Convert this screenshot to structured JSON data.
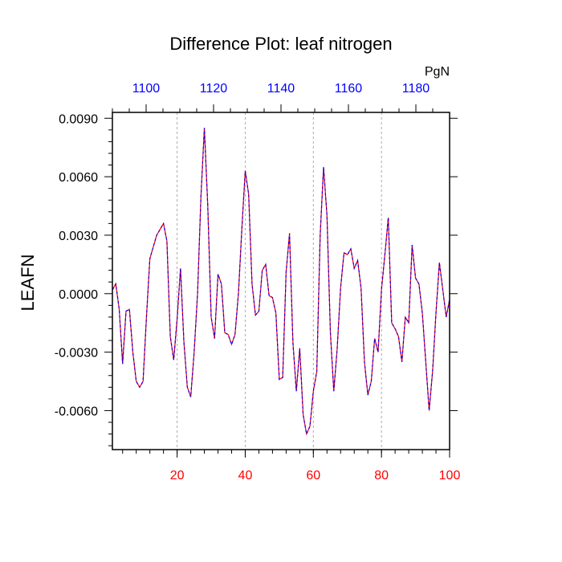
{
  "chart_data": {
    "type": "line",
    "title": "Difference Plot: leaf nitrogen",
    "ylabel": "LEAFN",
    "top_axis_unit": "PgN",
    "xlim": [
      1,
      100
    ],
    "ylim": [
      -0.008,
      0.0093
    ],
    "bottom_ticks": [
      {
        "value": 20,
        "label": "20"
      },
      {
        "value": 40,
        "label": "40"
      },
      {
        "value": 60,
        "label": "60"
      },
      {
        "value": 80,
        "label": "80"
      },
      {
        "value": 100,
        "label": "100"
      }
    ],
    "top_ticks": [
      {
        "value": 10.9,
        "label": "1100"
      },
      {
        "value": 30.7,
        "label": "1120"
      },
      {
        "value": 50.5,
        "label": "1140"
      },
      {
        "value": 70.3,
        "label": "1160"
      },
      {
        "value": 90.1,
        "label": "1180"
      }
    ],
    "y_ticks": [
      {
        "value": 0.009,
        "label": "0.0090"
      },
      {
        "value": 0.006,
        "label": "0.0060"
      },
      {
        "value": 0.003,
        "label": "0.0030"
      },
      {
        "value": 0.0,
        "label": "0.0000"
      },
      {
        "value": -0.003,
        "label": "-0.0030"
      },
      {
        "value": -0.006,
        "label": "-0.0060"
      }
    ],
    "y_minor_step": 0.0006,
    "x_minor_step": 4,
    "grid_lines_x": [
      20,
      40,
      60,
      80
    ],
    "colors": {
      "series_a": "#ff0000",
      "series_b": "#0000ff",
      "bottom_axis": "#ff0000",
      "top_axis": "#0000ff",
      "grid": "#aaaaaa",
      "frame": "#000000"
    },
    "series": [
      {
        "name": "difference",
        "x": [
          1,
          2,
          3,
          4,
          5,
          6,
          7,
          8,
          9,
          10,
          11,
          12,
          13,
          14,
          15,
          16,
          17,
          18,
          19,
          20,
          21,
          22,
          23,
          24,
          25,
          26,
          27,
          28,
          29,
          30,
          31,
          32,
          33,
          34,
          35,
          36,
          37,
          38,
          39,
          40,
          41,
          42,
          43,
          44,
          45,
          46,
          47,
          48,
          49,
          50,
          51,
          52,
          53,
          54,
          55,
          56,
          57,
          58,
          59,
          60,
          61,
          62,
          63,
          64,
          65,
          66,
          67,
          68,
          69,
          70,
          71,
          72,
          73,
          74,
          75,
          76,
          77,
          78,
          79,
          80,
          81,
          82,
          83,
          84,
          85,
          86,
          87,
          88,
          89,
          90,
          91,
          92,
          93,
          94,
          95,
          96,
          97,
          98,
          99,
          100
        ],
        "values": [
          0.0002,
          0.0005,
          -0.0008,
          -0.0036,
          -0.0009,
          -0.0008,
          -0.003,
          -0.0045,
          -0.0048,
          -0.0045,
          -0.0012,
          0.0018,
          0.0024,
          0.003,
          0.0033,
          0.0036,
          0.0027,
          -0.0022,
          -0.0034,
          -0.0013,
          0.0013,
          -0.0025,
          -0.0048,
          -0.0053,
          -0.003,
          0.0,
          0.005,
          0.0085,
          0.0045,
          -0.0012,
          -0.0023,
          0.001,
          0.0005,
          -0.002,
          -0.0021,
          -0.0026,
          -0.0021,
          0.0,
          0.0033,
          0.0063,
          0.0051,
          0.0005,
          -0.0011,
          -0.0009,
          0.0012,
          0.0015,
          -0.0001,
          -0.0002,
          -0.001,
          -0.0044,
          -0.0043,
          0.0011,
          0.0031,
          -0.0025,
          -0.005,
          -0.0028,
          -0.0062,
          -0.0072,
          -0.0068,
          -0.005,
          -0.004,
          0.003,
          0.0065,
          0.004,
          -0.002,
          -0.005,
          -0.0028,
          0.0003,
          0.0021,
          0.002,
          0.0023,
          0.0013,
          0.0017,
          0.0003,
          -0.0035,
          -0.0052,
          -0.0045,
          -0.0023,
          -0.003,
          0.0002,
          0.002,
          0.0039,
          -0.0015,
          -0.0018,
          -0.0022,
          -0.0035,
          -0.0012,
          -0.0015,
          0.0025,
          0.0008,
          0.0005,
          -0.001,
          -0.0035,
          -0.006,
          -0.004,
          -0.001,
          0.0016,
          0.0002,
          -0.0012,
          -0.0003
        ]
      }
    ]
  }
}
